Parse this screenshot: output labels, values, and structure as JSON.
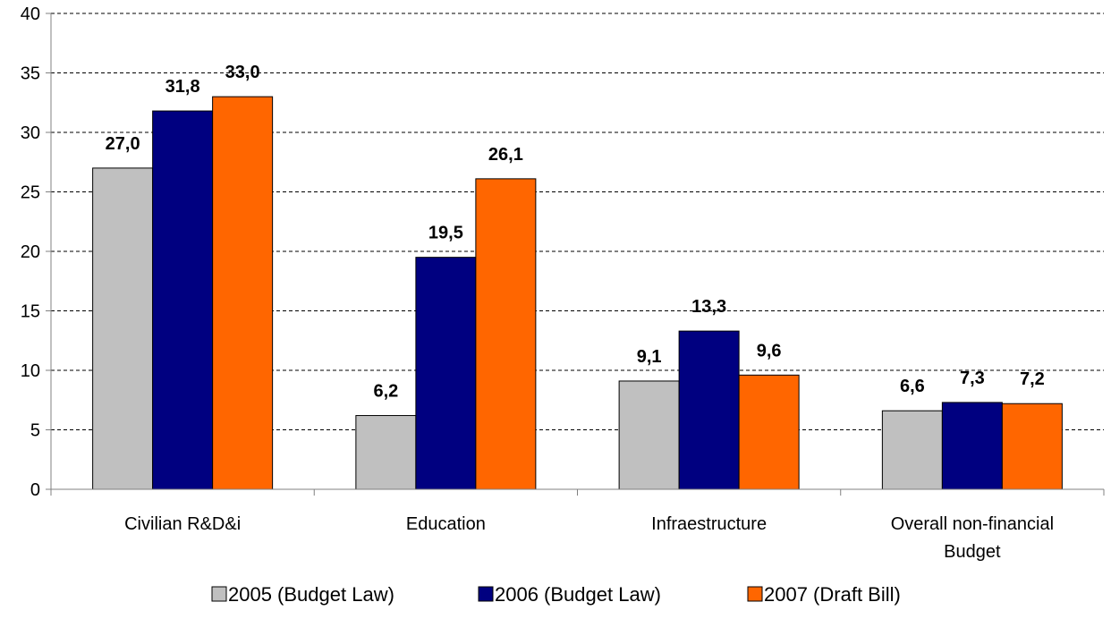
{
  "colors": {
    "series_2005": "#c0c0c0",
    "series_2006": "#000080",
    "series_2007": "#ff6600",
    "gridline": "#000000",
    "axis": "#808080"
  },
  "chart_data": {
    "type": "bar",
    "categories": [
      [
        "Civilian R&D&i"
      ],
      [
        "Education"
      ],
      [
        "Infraestructure"
      ],
      [
        "Overall non-financial",
        "Budget"
      ]
    ],
    "series": [
      {
        "name": "2005 (Budget Law)",
        "values": [
          27.0,
          6.2,
          9.1,
          6.6
        ],
        "labels": [
          "27,0",
          "6,2",
          "9,1",
          "6,6"
        ]
      },
      {
        "name": "2006 (Budget Law)",
        "values": [
          31.8,
          19.5,
          13.3,
          7.3
        ],
        "labels": [
          "31,8",
          "19,5",
          "13,3",
          "7,3"
        ]
      },
      {
        "name": "2007 (Draft Bill)",
        "values": [
          33.0,
          26.1,
          9.6,
          7.2
        ],
        "labels": [
          "33,0",
          "26,1",
          "9,6",
          "7,2"
        ]
      }
    ],
    "yticks": [
      "0",
      "5",
      "10",
      "15",
      "20",
      "25",
      "30",
      "35",
      "40"
    ],
    "ylim": [
      0,
      40
    ],
    "grid": "horizontal-dashed",
    "legend_position": "bottom"
  }
}
